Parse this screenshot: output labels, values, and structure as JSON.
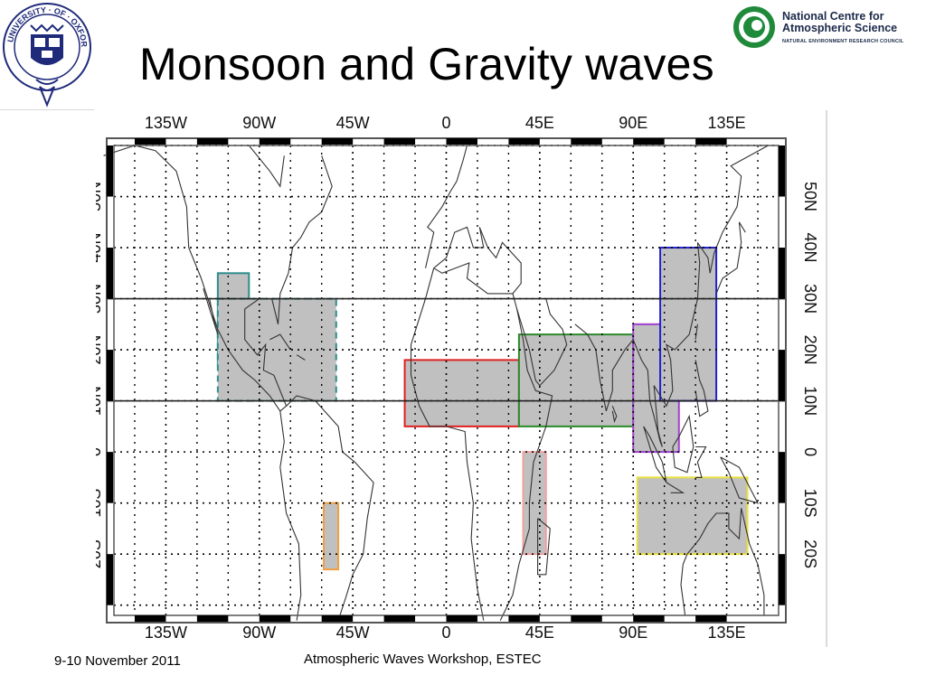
{
  "slide": {
    "title": "Monsoon and Gravity waves",
    "footer_date": "9-10 November 2011",
    "footer_event": "Atmospheric Waves Workshop, ESTEC"
  },
  "logos": {
    "oxford_text": "UNIVERSITY · OF · OXFORD",
    "ncas_line1": "National Centre for",
    "ncas_line2": "Atmospheric Science",
    "ncas_line3": "NATURAL ENVIRONMENT RESEARCH COUNCIL"
  },
  "map": {
    "lon_ticks": [
      "135W",
      "90W",
      "45W",
      "0",
      "45E",
      "90E",
      "135E"
    ],
    "lat_ticks": [
      "50N",
      "40N",
      "30N",
      "20N",
      "10N",
      "0",
      "10S",
      "20S"
    ],
    "band": {
      "lat_min": 10,
      "lat_max": 30
    },
    "regions": [
      {
        "id": "teal",
        "color": "#2f8c8c",
        "lon": [
          -110,
          -95
        ],
        "lat": [
          17,
          35
        ]
      },
      {
        "id": "teal-dashed",
        "color": "#2f8c8c",
        "dashed": true,
        "lon": [
          -110,
          -53
        ],
        "lat": [
          10,
          30
        ]
      },
      {
        "id": "orange",
        "color": "#f0a040",
        "lon": [
          -59,
          -52
        ],
        "lat": [
          -23,
          -10
        ]
      },
      {
        "id": "red",
        "color": "#e02020",
        "lon": [
          -20,
          35
        ],
        "lat": [
          5,
          18
        ]
      },
      {
        "id": "green",
        "color": "#2a8a2a",
        "lon": [
          35,
          90
        ],
        "lat": [
          5,
          23
        ]
      },
      {
        "id": "pink",
        "color": "#f0a0a0",
        "lon": [
          37,
          48
        ],
        "lat": [
          -20,
          0
        ]
      },
      {
        "id": "purple",
        "color": "#a040d0",
        "lon": [
          90,
          112
        ],
        "lat": [
          0,
          25
        ]
      },
      {
        "id": "blue",
        "color": "#2020d0",
        "lon": [
          103,
          130
        ],
        "lat": [
          10,
          40
        ]
      },
      {
        "id": "yellow",
        "color": "#e8e040",
        "lon": [
          92,
          145
        ],
        "lat": [
          -20,
          -5
        ]
      }
    ]
  }
}
